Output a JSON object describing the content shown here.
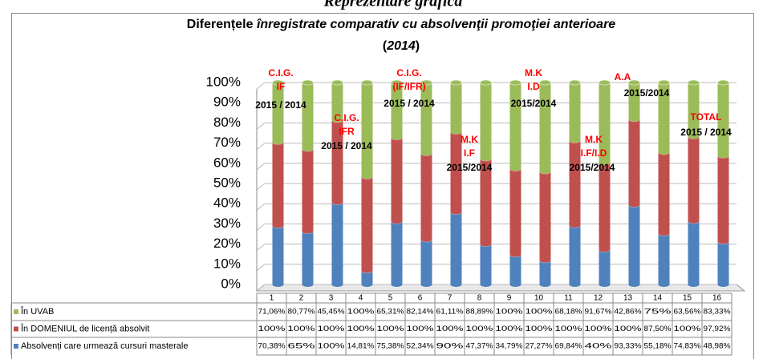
{
  "heading": "Reprezentare grafică",
  "chart_data": {
    "type": "stacked_bar_100",
    "title": [
      "Diferențele",
      "înregistrate comparativ cu absolvenţii promoţiei anterioare",
      "(",
      "2014",
      ")"
    ],
    "categories": [
      "1",
      "2",
      "3",
      "4",
      "5",
      "6",
      "7",
      "8",
      "9",
      "10",
      "11",
      "12",
      "13",
      "14",
      "15",
      "16"
    ],
    "ylim": [
      0,
      100
    ],
    "yticks": [
      {
        "value": 0,
        "label": "0%"
      },
      {
        "value": 10,
        "label": "10%"
      },
      {
        "value": 20,
        "label": "20%"
      },
      {
        "value": 30,
        "label": "30%"
      },
      {
        "value": 40,
        "label": "40%"
      },
      {
        "value": 50,
        "label": "50%"
      },
      {
        "value": 60,
        "label": "60%"
      },
      {
        "value": 70,
        "label": "70%"
      },
      {
        "value": 80,
        "label": "80%"
      },
      {
        "value": 90,
        "label": "90%"
      },
      {
        "value": 100,
        "label": "100%"
      }
    ],
    "grid": true,
    "series": [
      {
        "name": "În UVAB",
        "color": "#9bbb59",
        "values": [
          71.06,
          80.77,
          45.45,
          100,
          65.31,
          82.14,
          61.11,
          88.89,
          100,
          100,
          68.18,
          91.67,
          42.86,
          75,
          63.56,
          83.33
        ],
        "value_labels": [
          "71,06%",
          "80,77%",
          "45,45%",
          "100%",
          "65,31%",
          "82,14%",
          "61,11%",
          "88,89%",
          "100%",
          "100%",
          "68,18%",
          "91,67%",
          "42,86%",
          "75%",
          "63,56%",
          "83,33%"
        ]
      },
      {
        "name": "În DOMENIUL de licență absolvit",
        "color": "#c0504d",
        "values": [
          100,
          100,
          100,
          100,
          100,
          100,
          100,
          100,
          100,
          100,
          100,
          100,
          100,
          87.5,
          100,
          97.92
        ],
        "value_labels": [
          "100%",
          "100%",
          "100%",
          "100%",
          "100%",
          "100%",
          "100%",
          "100%",
          "100%",
          "100%",
          "100%",
          "100%",
          "100%",
          "87,50%",
          "100%",
          "97,92%"
        ]
      },
      {
        "name": "Absolvenți care urmează cursuri masterale",
        "color": "#4f81bd",
        "values": [
          70.38,
          65,
          100,
          14.81,
          75.38,
          52.34,
          90,
          47.37,
          34.79,
          27.27,
          69.84,
          40,
          93.33,
          55.18,
          74.83,
          48.98
        ],
        "value_labels": [
          "70,38%",
          "65%",
          "100%",
          "14,81%",
          "75,38%",
          "52,34%",
          "90%",
          "47,37%",
          "34,79%",
          "27,27%",
          "69,84%",
          "40%",
          "93,33%",
          "55,18%",
          "74,83%",
          "48,98%"
        ]
      }
    ],
    "annotations": [
      {
        "label": [
          "C.I.G.",
          "IF"
        ],
        "color": "#ff0000"
      },
      {
        "label": [
          "2015 / 2014"
        ],
        "color": "#000000"
      },
      {
        "label": [
          "C.I.G.",
          "IFR"
        ],
        "color": "#ff0000"
      },
      {
        "label": [
          "2015 / 2014"
        ],
        "color": "#000000"
      },
      {
        "label": [
          "C.I.G.",
          "(IF/IFR)"
        ],
        "color": "#ff0000"
      },
      {
        "label": [
          "2015 / 2014"
        ],
        "color": "#000000"
      },
      {
        "label": [
          "M.K",
          "I.F"
        ],
        "color": "#ff0000"
      },
      {
        "label": [
          "2015/2014"
        ],
        "color": "#000000"
      },
      {
        "label": [
          "M.K",
          "I.D"
        ],
        "color": "#ff0000"
      },
      {
        "label": [
          "2015/2014"
        ],
        "color": "#000000"
      },
      {
        "label": [
          "M.K",
          "I.F/I.D"
        ],
        "color": "#ff0000"
      },
      {
        "label": [
          "2015/2014"
        ],
        "color": "#000000"
      },
      {
        "label": [
          "A.A"
        ],
        "color": "#ff0000"
      },
      {
        "label": [
          "2015/2014"
        ],
        "color": "#000000"
      },
      {
        "label": [
          "TOTAL"
        ],
        "color": "#ff0000"
      },
      {
        "label": [
          "2015 / 2014"
        ],
        "color": "#000000"
      }
    ]
  }
}
